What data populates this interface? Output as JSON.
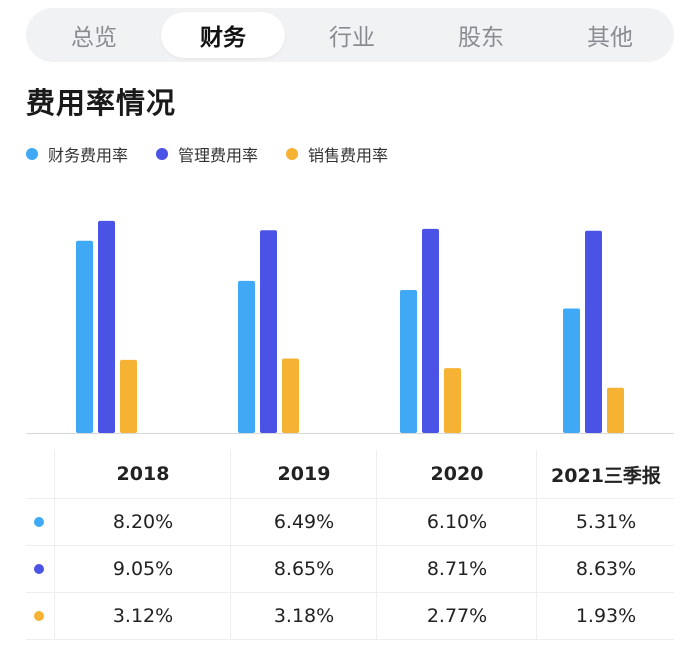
{
  "tabs": [
    {
      "label": "总览",
      "active": false
    },
    {
      "label": "财务",
      "active": true
    },
    {
      "label": "行业",
      "active": false
    },
    {
      "label": "股东",
      "active": false
    },
    {
      "label": "其他",
      "active": false
    }
  ],
  "section_title": "费用率情况",
  "colors": {
    "finance": "#3fa9f5",
    "admin": "#4b52e6",
    "sales": "#f5b233"
  },
  "legend": [
    {
      "label": "财务费用率",
      "color": "#3fa9f5"
    },
    {
      "label": "管理费用率",
      "color": "#4b52e6"
    },
    {
      "label": "销售费用率",
      "color": "#f5b233"
    }
  ],
  "chart_data": {
    "type": "bar",
    "categories": [
      "2018",
      "2019",
      "2020",
      "2021三季报"
    ],
    "series": [
      {
        "name": "财务费用率",
        "values": [
          8.2,
          6.49,
          6.1,
          5.31
        ],
        "color": "#3fa9f5"
      },
      {
        "name": "管理费用率",
        "values": [
          9.05,
          8.65,
          8.71,
          8.63
        ],
        "color": "#4b52e6"
      },
      {
        "name": "销售费用率",
        "values": [
          3.12,
          3.18,
          2.77,
          1.93
        ],
        "color": "#f5b233"
      }
    ],
    "ylim": [
      0,
      9.3
    ],
    "title": "费用率情况",
    "legend_position": "top-left",
    "grid": false
  },
  "table": {
    "headers": [
      "2018",
      "2019",
      "2020",
      "2021三季报"
    ],
    "rows": [
      {
        "color": "#3fa9f5",
        "values": [
          "8.20%",
          "6.49%",
          "6.10%",
          "5.31%"
        ]
      },
      {
        "color": "#4b52e6",
        "values": [
          "9.05%",
          "8.65%",
          "8.71%",
          "8.63%"
        ]
      },
      {
        "color": "#f5b233",
        "values": [
          "3.12%",
          "3.18%",
          "2.77%",
          "1.93%"
        ]
      }
    ]
  }
}
